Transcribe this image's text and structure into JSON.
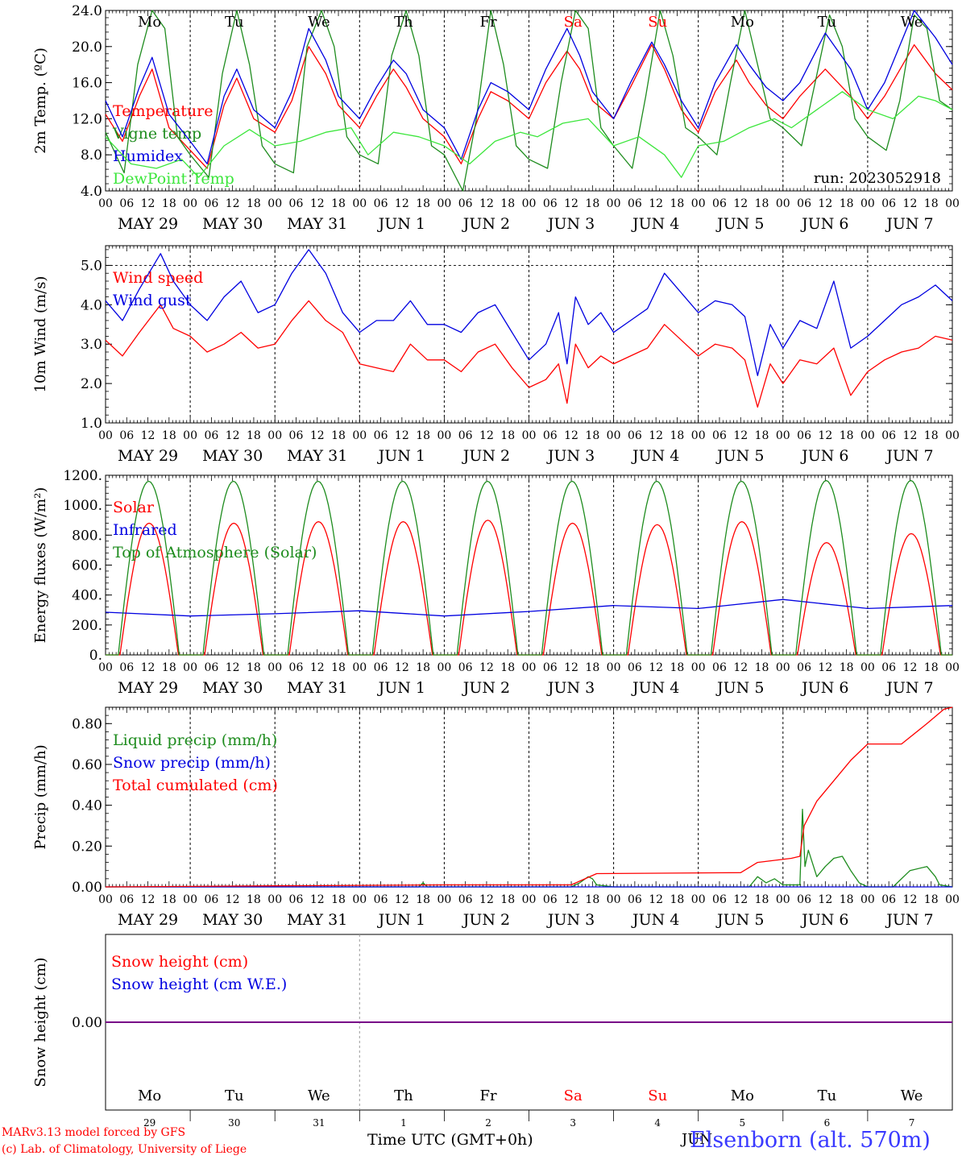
{
  "header": {
    "run_label": "run: 2023052918"
  },
  "footer": {
    "credit_line1": "MARv3.13 model forced by GFS",
    "credit_line2": "(c) Lab. of Climatology, University of Liege",
    "x_title": "Time UTC (GMT+0h)",
    "station": "Elsenborn (alt. 570m)",
    "month_label": "JUN"
  },
  "colors": {
    "red": "#ff0000",
    "green": "#1e8c1e",
    "blue": "#0000e0",
    "lightgreen": "#3ce63c",
    "purple": "#800080",
    "weekend": "#ff0000"
  },
  "days": [
    {
      "abbr": "Mo",
      "date": "MAY 29",
      "num": "29",
      "weekend": false
    },
    {
      "abbr": "Tu",
      "date": "MAY 30",
      "num": "30",
      "weekend": false
    },
    {
      "abbr": "We",
      "date": "MAY 31",
      "num": "31",
      "weekend": false
    },
    {
      "abbr": "Th",
      "date": "JUN  1",
      "num": "1",
      "weekend": false
    },
    {
      "abbr": "Fr",
      "date": "JUN  2",
      "num": "2",
      "weekend": false
    },
    {
      "abbr": "Sa",
      "date": "JUN  3",
      "num": "3",
      "weekend": true
    },
    {
      "abbr": "Su",
      "date": "JUN  4",
      "num": "4",
      "weekend": true
    },
    {
      "abbr": "Mo",
      "date": "JUN  5",
      "num": "5",
      "weekend": false
    },
    {
      "abbr": "Tu",
      "date": "JUN  6",
      "num": "6",
      "weekend": false
    },
    {
      "abbr": "We",
      "date": "JUN  7",
      "num": "7",
      "weekend": false
    }
  ],
  "hour_ticks": [
    "00",
    "06",
    "12",
    "18"
  ],
  "hour_end": "00",
  "chart_data": [
    {
      "type": "line",
      "ylabel": "2m Temp. (ºC)",
      "ylim": [
        4,
        24
      ],
      "yticks": [
        "4.0",
        "8.0",
        "12.0",
        "16.0",
        "20.0",
        "24.0"
      ],
      "ytick_values": [
        4,
        8,
        12,
        16,
        20,
        24
      ],
      "show_day_abbr": true,
      "show_run": true,
      "x_unit": "days since May 29 00 UTC",
      "series": [
        {
          "name": "Temperature",
          "color": "red",
          "x": [
            0,
            0.2,
            0.4,
            0.55,
            0.75,
            1.0,
            1.2,
            1.4,
            1.55,
            1.75,
            2.0,
            2.2,
            2.4,
            2.6,
            2.75,
            3.0,
            3.2,
            3.4,
            3.55,
            3.75,
            4.0,
            4.2,
            4.4,
            4.55,
            4.75,
            5.0,
            5.2,
            5.45,
            5.6,
            5.75,
            6.0,
            6.2,
            6.45,
            6.6,
            6.8,
            7.0,
            7.2,
            7.45,
            7.6,
            7.8,
            8.0,
            8.2,
            8.5,
            8.8,
            9.0,
            9.2,
            9.55,
            9.8,
            10.0
          ],
          "y": [
            12.5,
            9.5,
            14.5,
            17.5,
            11.0,
            8.5,
            6.5,
            13.5,
            16.5,
            12.0,
            10.5,
            14.0,
            20.0,
            17.0,
            13.5,
            11.0,
            14.5,
            17.5,
            15.5,
            12.0,
            10.0,
            7.0,
            12.0,
            15.0,
            14.0,
            12.0,
            16.0,
            19.5,
            17.5,
            14.0,
            12.0,
            15.5,
            20.2,
            17.5,
            13.0,
            10.5,
            15.0,
            18.5,
            16.0,
            13.5,
            12.0,
            14.5,
            17.5,
            14.5,
            12.0,
            14.5,
            20.2,
            17.0,
            15.2
          ]
        },
        {
          "name": "Vigne temp",
          "color": "green",
          "x": [
            0,
            0.22,
            0.38,
            0.55,
            0.7,
            0.85,
            1.0,
            1.22,
            1.38,
            1.55,
            1.7,
            1.85,
            2.0,
            2.22,
            2.38,
            2.55,
            2.7,
            2.85,
            3.0,
            3.22,
            3.38,
            3.55,
            3.7,
            3.85,
            4.0,
            4.22,
            4.38,
            4.55,
            4.7,
            4.85,
            5.0,
            5.22,
            5.38,
            5.55,
            5.7,
            5.85,
            6.0,
            6.22,
            6.38,
            6.55,
            6.7,
            6.85,
            7.0,
            7.22,
            7.38,
            7.55,
            7.7,
            7.85,
            8.0,
            8.22,
            8.38,
            8.55,
            8.7,
            8.85,
            9.0,
            9.22,
            9.38,
            9.55,
            9.7,
            9.85,
            10.0
          ],
          "y": [
            10.5,
            6.0,
            18.0,
            24.0,
            22.0,
            10.0,
            8.0,
            5.5,
            17.0,
            24.0,
            18.0,
            9.0,
            7.0,
            6.0,
            20.0,
            24.0,
            20.0,
            10.0,
            8.0,
            7.0,
            19.0,
            24.0,
            19.0,
            9.0,
            8.0,
            4.0,
            12.0,
            24.0,
            18.0,
            9.0,
            7.5,
            6.5,
            16.0,
            24.0,
            22.0,
            11.0,
            9.0,
            6.5,
            14.5,
            24.0,
            19.0,
            11.0,
            10.0,
            8.0,
            16.0,
            24.0,
            18.0,
            12.0,
            11.0,
            9.0,
            16.0,
            23.5,
            20.0,
            12.0,
            10.0,
            8.5,
            14.0,
            23.5,
            22.0,
            14.0,
            13.0
          ]
        },
        {
          "name": "Humidex",
          "color": "blue",
          "x": [
            0,
            0.2,
            0.4,
            0.55,
            0.75,
            1.0,
            1.2,
            1.4,
            1.55,
            1.75,
            2.0,
            2.2,
            2.4,
            2.6,
            2.75,
            3.0,
            3.2,
            3.4,
            3.55,
            3.75,
            4.0,
            4.2,
            4.4,
            4.55,
            4.75,
            5.0,
            5.2,
            5.45,
            5.6,
            5.75,
            6.0,
            6.2,
            6.45,
            6.6,
            6.8,
            7.0,
            7.2,
            7.45,
            7.6,
            7.8,
            8.0,
            8.2,
            8.5,
            8.8,
            9.0,
            9.2,
            9.55,
            9.8,
            10.0
          ],
          "y": [
            14.0,
            10.0,
            15.5,
            18.8,
            12.5,
            9.5,
            7.0,
            14.5,
            17.5,
            13.0,
            11.0,
            15.0,
            22.0,
            18.5,
            14.5,
            12.0,
            15.5,
            18.5,
            17.0,
            13.0,
            11.0,
            7.5,
            13.0,
            16.0,
            15.0,
            13.0,
            17.5,
            22.0,
            19.0,
            15.0,
            12.0,
            16.0,
            20.5,
            18.0,
            14.0,
            11.0,
            16.0,
            20.2,
            18.0,
            15.5,
            14.0,
            16.0,
            21.5,
            17.5,
            13.0,
            16.0,
            24.0,
            21.0,
            18.0
          ]
        },
        {
          "name": "DewPoint Temp",
          "color": "lightgreen",
          "x": [
            0,
            0.3,
            0.6,
            0.9,
            1.1,
            1.4,
            1.7,
            2.0,
            2.3,
            2.6,
            2.9,
            3.1,
            3.4,
            3.7,
            4.0,
            4.3,
            4.6,
            4.9,
            5.1,
            5.4,
            5.7,
            6.0,
            6.3,
            6.6,
            6.8,
            7.0,
            7.3,
            7.6,
            7.9,
            8.1,
            8.4,
            8.7,
            9.0,
            9.3,
            9.6,
            9.8,
            10.0
          ],
          "y": [
            10.0,
            7.0,
            6.5,
            7.5,
            5.5,
            9.0,
            10.8,
            9.0,
            9.5,
            10.5,
            11.0,
            8.0,
            10.5,
            10.0,
            9.0,
            7.0,
            9.5,
            10.5,
            10.0,
            11.5,
            12.0,
            9.0,
            10.0,
            8.0,
            5.5,
            9.0,
            9.5,
            11.0,
            12.0,
            11.0,
            13.0,
            15.0,
            13.0,
            12.0,
            14.5,
            14.0,
            13.0
          ]
        }
      ]
    },
    {
      "type": "line",
      "ylabel": "10m Wind (m/s)",
      "ylim": [
        1,
        5.5
      ],
      "yticks": [
        "1.0",
        "2.0",
        "3.0",
        "4.0",
        "5.0"
      ],
      "ytick_values": [
        1,
        2,
        3,
        4,
        5
      ],
      "hline": 5.0,
      "x_unit": "days since May 29 00 UTC",
      "series": [
        {
          "name": "Wind speed",
          "color": "red",
          "x": [
            0,
            0.2,
            0.4,
            0.65,
            0.8,
            1.0,
            1.2,
            1.4,
            1.6,
            1.8,
            2.0,
            2.2,
            2.4,
            2.6,
            2.8,
            3.0,
            3.2,
            3.4,
            3.6,
            3.8,
            4.0,
            4.2,
            4.4,
            4.6,
            4.8,
            5.0,
            5.2,
            5.35,
            5.45,
            5.55,
            5.7,
            5.85,
            6.0,
            6.2,
            6.4,
            6.6,
            6.8,
            7.0,
            7.2,
            7.4,
            7.55,
            7.7,
            7.85,
            8.0,
            8.2,
            8.4,
            8.6,
            8.8,
            9.0,
            9.2,
            9.4,
            9.6,
            9.8,
            10.0
          ],
          "y": [
            3.1,
            2.7,
            3.3,
            4.0,
            3.4,
            3.2,
            2.8,
            3.0,
            3.3,
            2.9,
            3.0,
            3.6,
            4.1,
            3.6,
            3.3,
            2.5,
            2.4,
            2.3,
            3.0,
            2.6,
            2.6,
            2.3,
            2.8,
            3.0,
            2.4,
            1.9,
            2.1,
            2.5,
            1.5,
            3.0,
            2.4,
            2.7,
            2.5,
            2.7,
            2.9,
            3.5,
            3.1,
            2.7,
            3.0,
            2.9,
            2.6,
            1.4,
            2.5,
            2.0,
            2.6,
            2.5,
            2.9,
            1.7,
            2.3,
            2.6,
            2.8,
            2.9,
            3.2,
            3.1
          ]
        },
        {
          "name": "Wind gust",
          "color": "blue",
          "x": [
            0,
            0.2,
            0.4,
            0.65,
            0.8,
            1.0,
            1.2,
            1.4,
            1.6,
            1.8,
            2.0,
            2.2,
            2.4,
            2.6,
            2.8,
            3.0,
            3.2,
            3.4,
            3.6,
            3.8,
            4.0,
            4.2,
            4.4,
            4.6,
            4.8,
            5.0,
            5.2,
            5.35,
            5.45,
            5.55,
            5.7,
            5.85,
            6.0,
            6.2,
            6.4,
            6.6,
            6.8,
            7.0,
            7.2,
            7.4,
            7.55,
            7.7,
            7.85,
            8.0,
            8.2,
            8.4,
            8.6,
            8.8,
            9.0,
            9.2,
            9.4,
            9.6,
            9.8,
            10.0
          ],
          "y": [
            4.1,
            3.6,
            4.4,
            5.3,
            4.6,
            4.0,
            3.6,
            4.2,
            4.6,
            3.8,
            4.0,
            4.8,
            5.4,
            4.8,
            3.8,
            3.3,
            3.6,
            3.6,
            4.1,
            3.5,
            3.5,
            3.3,
            3.8,
            4.0,
            3.3,
            2.6,
            3.0,
            3.8,
            2.5,
            4.2,
            3.5,
            3.8,
            3.3,
            3.6,
            3.9,
            4.8,
            4.3,
            3.8,
            4.1,
            4.0,
            3.7,
            2.2,
            3.5,
            2.9,
            3.6,
            3.4,
            4.6,
            2.9,
            3.2,
            3.6,
            4.0,
            4.2,
            4.5,
            4.1
          ]
        }
      ]
    },
    {
      "type": "line",
      "ylabel": "Energy fluxes (W/m²)",
      "ylim": [
        0,
        1200
      ],
      "yticks": [
        "0.",
        "200.",
        "400.",
        "600.",
        "800.",
        "1000.",
        "1200."
      ],
      "ytick_values": [
        0,
        200,
        400,
        600,
        800,
        1000,
        1200
      ],
      "x_unit": "days since May 29 00 UTC",
      "solar_peak_hour_frac": 0.5,
      "series": [
        {
          "name": "Solar",
          "color": "red",
          "daily_peak": [
            880,
            880,
            890,
            890,
            900,
            880,
            870,
            890,
            750,
            810
          ],
          "day_start": 0.17,
          "day_end": 0.86
        },
        {
          "name": "Infrared",
          "color": "blue",
          "x": [
            0,
            1,
            2,
            3,
            4,
            5,
            6,
            7,
            8,
            9,
            10
          ],
          "y": [
            285,
            260,
            275,
            295,
            260,
            290,
            330,
            310,
            370,
            310,
            330
          ]
        },
        {
          "name": "Top of Atmosphere (Solar)",
          "color": "green",
          "daily_peak": [
            1160,
            1160,
            1160,
            1160,
            1160,
            1160,
            1160,
            1160,
            1165,
            1165
          ],
          "day_start": 0.15,
          "day_end": 0.87
        }
      ]
    },
    {
      "type": "line",
      "ylabel": "Precip (mm/h)",
      "ylim": [
        0,
        0.88
      ],
      "yticks": [
        "0.00",
        "0.20",
        "0.40",
        "0.60",
        "0.80"
      ],
      "ytick_values": [
        0,
        0.2,
        0.4,
        0.6,
        0.8
      ],
      "x_unit": "days since May 29 00 UTC",
      "series": [
        {
          "name": "Liquid precip (mm/h)",
          "color": "green",
          "x": [
            0,
            3.7,
            3.75,
            3.8,
            5.5,
            5.6,
            5.7,
            5.75,
            5.8,
            6.0,
            7.6,
            7.7,
            7.8,
            7.9,
            8.0,
            8.2,
            8.23,
            8.26,
            8.3,
            8.4,
            8.5,
            8.6,
            8.7,
            8.8,
            8.9,
            9.0,
            9.3,
            9.5,
            9.7,
            9.8,
            9.85,
            10.0
          ],
          "y": [
            0,
            0,
            0.02,
            0,
            0,
            0.02,
            0.05,
            0.04,
            0.01,
            0,
            0,
            0.05,
            0.02,
            0.04,
            0.01,
            0.01,
            0.38,
            0.1,
            0.18,
            0.05,
            0.1,
            0.14,
            0.15,
            0.08,
            0.02,
            0,
            0,
            0.08,
            0.1,
            0.05,
            0.01,
            0
          ]
        },
        {
          "name": "Snow precip (mm/h)",
          "color": "blue",
          "x": [
            0,
            10
          ],
          "y": [
            0,
            0
          ]
        },
        {
          "name": "Total cumulated (cm)",
          "color": "red",
          "x": [
            0,
            2.0,
            4.0,
            5.5,
            5.8,
            7.5,
            7.7,
            8.1,
            8.2,
            8.25,
            8.4,
            8.8,
            9.0,
            9.4,
            9.7,
            9.9,
            10.0
          ],
          "y": [
            0,
            0.005,
            0.01,
            0.01,
            0.065,
            0.07,
            0.12,
            0.14,
            0.15,
            0.3,
            0.42,
            0.62,
            0.7,
            0.7,
            0.8,
            0.87,
            0.88
          ]
        }
      ]
    },
    {
      "type": "line",
      "ylabel": "Snow height (cm)",
      "ylim": [
        -1,
        1
      ],
      "yticks": [
        "0.00"
      ],
      "ytick_values": [
        0
      ],
      "x_unit": "days since May 29 00 UTC",
      "series": [
        {
          "name": "Snow height (cm)",
          "color": "red",
          "x": [
            0,
            10
          ],
          "y": [
            0,
            0
          ]
        },
        {
          "name": "Snow height (cm W.E.)",
          "color": "blue",
          "x": [
            0,
            10
          ],
          "y": [
            0,
            0
          ]
        }
      ]
    }
  ]
}
